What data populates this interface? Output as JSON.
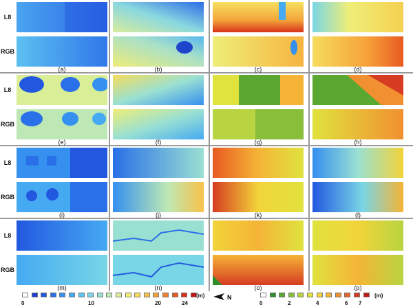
{
  "row_labels": [
    "L8",
    "RGB"
  ],
  "captions": [
    "(a)",
    "(b)",
    "(c)",
    "(d)",
    "(e)",
    "(f)",
    "(g)",
    "(h)",
    "(i)",
    "(j)",
    "(k)",
    "(l)",
    "(m)",
    "(n)",
    "(o)",
    "(p)"
  ],
  "legend_left": {
    "ticks": [
      "0",
      "10",
      "20",
      "24"
    ],
    "unit": "(m)",
    "colors": [
      "#ffffff",
      "#1d3fd0",
      "#2258e0",
      "#2a70e8",
      "#3590f0",
      "#45aaf2",
      "#5cc3ef",
      "#78d6e6",
      "#9ae0d2",
      "#bde8b6",
      "#daee98",
      "#eeee78",
      "#f5dc5c",
      "#f7c24a",
      "#f7a23a",
      "#f2802d",
      "#e85a22",
      "#d8321a",
      "#c01212"
    ]
  },
  "legend_right": {
    "ticks": [
      "0",
      "2",
      "4",
      "6",
      "7"
    ],
    "unit": "(m)",
    "colors": [
      "#ffffff",
      "#2e8f2a",
      "#5aa832",
      "#88be3a",
      "#b8d440",
      "#e0e23e",
      "#f2d43a",
      "#f5b436",
      "#f19030",
      "#e6642a",
      "#d63c22",
      "#c01a14"
    ]
  },
  "north_label": "N",
  "colors": {
    "separator": "#9a9a9a"
  }
}
